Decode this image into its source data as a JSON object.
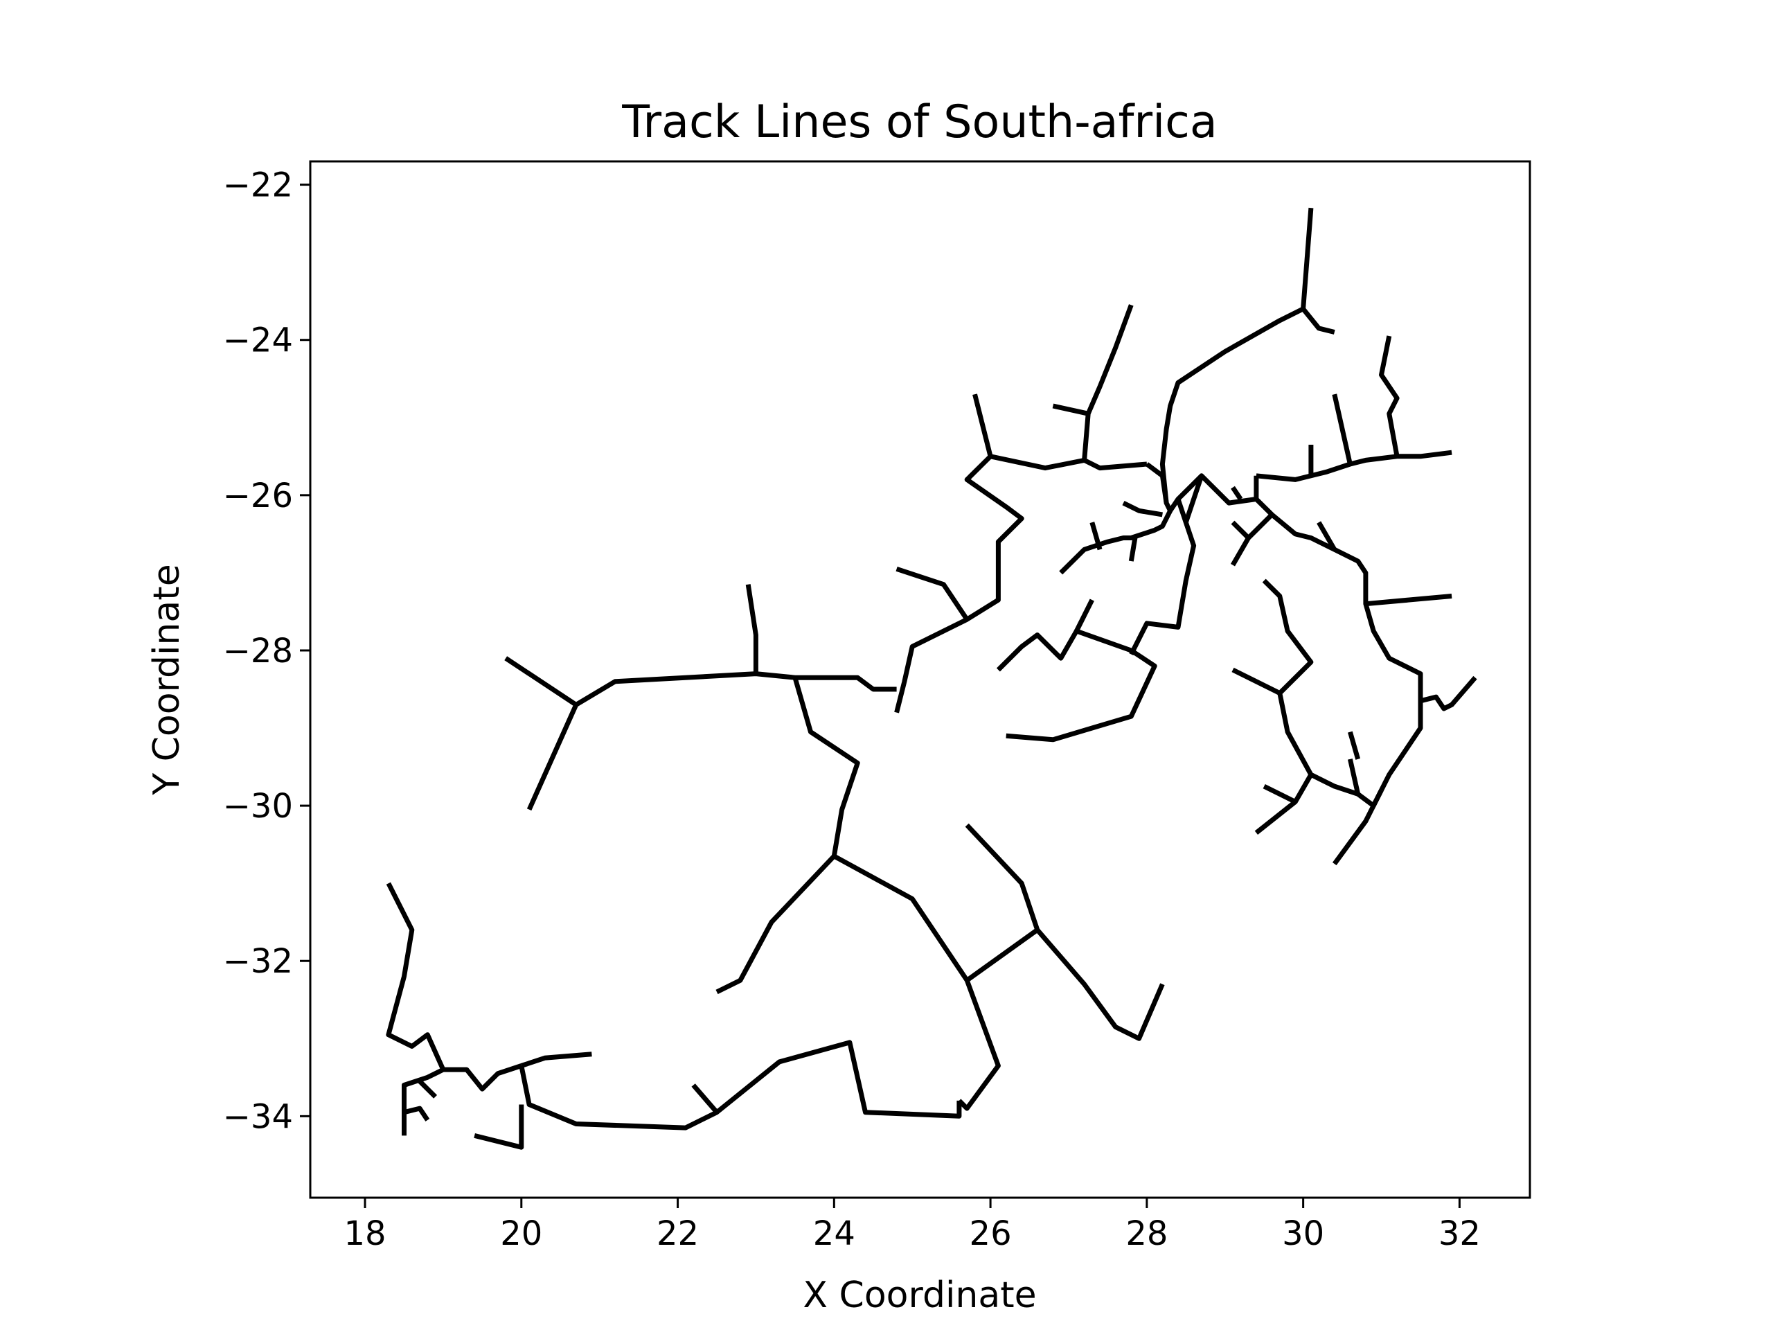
{
  "chart_data": {
    "type": "line",
    "title": "Track Lines of South-africa",
    "xlabel": "X Coordinate",
    "ylabel": "Y Coordinate",
    "xlim": [
      17.3,
      32.9
    ],
    "ylim": [
      -35.05,
      -21.7
    ],
    "xticks": [
      18,
      20,
      22,
      24,
      26,
      28,
      30,
      32
    ],
    "xtick_labels": [
      "18",
      "20",
      "22",
      "24",
      "26",
      "28",
      "30",
      "32"
    ],
    "yticks": [
      -22,
      -24,
      -26,
      -28,
      -30,
      -32,
      -34
    ],
    "ytick_labels": [
      "−22",
      "−24",
      "−26",
      "−28",
      "−30",
      "−32",
      "−34"
    ],
    "grid": false,
    "legend": "none",
    "line_color": "#000000",
    "series": [
      {
        "x": [
          20.1,
          20.7,
          21.2,
          23.0,
          23.5,
          24.3,
          24.5,
          24.8
        ],
        "y": [
          -30.05,
          -28.7,
          -28.4,
          -28.3,
          -28.35,
          -28.35,
          -28.5,
          -28.5
        ]
      },
      {
        "x": [
          19.8,
          20.7
        ],
        "y": [
          -28.1,
          -28.7
        ]
      },
      {
        "x": [
          22.9,
          23.0,
          23.0
        ],
        "y": [
          -27.15,
          -27.8,
          -28.3
        ]
      },
      {
        "x": [
          23.5,
          23.7,
          24.3,
          24.1,
          24.0,
          23.2,
          22.8,
          22.5
        ],
        "y": [
          -28.35,
          -29.05,
          -29.45,
          -30.05,
          -30.65,
          -31.5,
          -32.25,
          -32.4
        ]
      },
      {
        "x": [
          24.0,
          25.0,
          25.2,
          25.7,
          26.1,
          25.7,
          25.6
        ],
        "y": [
          -30.65,
          -31.2,
          -31.5,
          -32.25,
          -33.35,
          -33.9,
          -33.8
        ]
      },
      {
        "x": [
          25.7,
          26.6,
          26.4,
          25.7
        ],
        "y": [
          -32.25,
          -31.6,
          -31.0,
          -30.25
        ]
      },
      {
        "x": [
          26.6,
          27.2,
          27.6,
          27.9,
          28.2
        ],
        "y": [
          -31.6,
          -32.3,
          -32.85,
          -33.0,
          -32.3
        ]
      },
      {
        "x": [
          25.6,
          25.6,
          24.4,
          24.2,
          23.3,
          22.5,
          22.1,
          20.7,
          20.1,
          20.0
        ],
        "y": [
          -33.8,
          -34.0,
          -33.95,
          -33.05,
          -33.3,
          -33.95,
          -34.15,
          -34.1,
          -33.85,
          -33.35
        ]
      },
      {
        "x": [
          22.5,
          22.2
        ],
        "y": [
          -33.95,
          -33.6
        ]
      },
      {
        "x": [
          20.0,
          20.0,
          19.4
        ],
        "y": [
          -33.85,
          -34.4,
          -34.25
        ]
      },
      {
        "x": [
          20.0,
          20.3,
          20.9
        ],
        "y": [
          -33.35,
          -33.25,
          -33.2
        ]
      },
      {
        "x": [
          20.0,
          19.7,
          19.5,
          19.3,
          19.0,
          18.8,
          18.5,
          18.5
        ],
        "y": [
          -33.35,
          -33.45,
          -33.65,
          -33.4,
          -33.4,
          -33.5,
          -33.6,
          -34.25
        ]
      },
      {
        "x": [
          19.0,
          18.8,
          18.6,
          18.3,
          18.5,
          18.6,
          18.3
        ],
        "y": [
          -33.4,
          -32.95,
          -33.1,
          -32.95,
          -32.2,
          -31.6,
          -31.0
        ]
      },
      {
        "x": [
          18.5,
          18.7,
          18.8
        ],
        "y": [
          -33.95,
          -33.9,
          -34.05
        ]
      },
      {
        "x": [
          18.7,
          18.9
        ],
        "y": [
          -33.55,
          -33.75
        ]
      },
      {
        "x": [
          24.8,
          24.9,
          25.0,
          25.7,
          26.1,
          26.1,
          26.4,
          26.2,
          25.7,
          26.0,
          26.7,
          27.2,
          27.4,
          28.0
        ],
        "y": [
          -28.8,
          -28.4,
          -27.95,
          -27.6,
          -27.35,
          -26.6,
          -26.3,
          -26.15,
          -25.8,
          -25.5,
          -25.65,
          -25.55,
          -25.65,
          -25.6
        ]
      },
      {
        "x": [
          25.7,
          25.4,
          24.8
        ],
        "y": [
          -27.6,
          -27.15,
          -26.95
        ]
      },
      {
        "x": [
          26.0,
          25.8
        ],
        "y": [
          -25.5,
          -24.7
        ]
      },
      {
        "x": [
          27.2,
          27.25,
          27.4,
          27.6,
          27.8
        ],
        "y": [
          -25.55,
          -24.95,
          -24.6,
          -24.1,
          -23.55
        ]
      },
      {
        "x": [
          27.25,
          26.8
        ],
        "y": [
          -24.95,
          -24.85
        ]
      },
      {
        "x": [
          28.0,
          28.2,
          28.25,
          28.3,
          28.4,
          28.7,
          29.05,
          29.4,
          29.4
        ],
        "y": [
          -25.6,
          -25.75,
          -26.1,
          -26.2,
          -26.05,
          -25.75,
          -26.1,
          -26.05,
          -25.75
        ]
      },
      {
        "x": [
          28.25,
          28.2,
          28.25,
          28.3,
          28.4,
          29.0,
          29.7,
          30.0,
          30.2,
          30.4
        ],
        "y": [
          -26.1,
          -25.6,
          -25.15,
          -24.85,
          -24.55,
          -24.15,
          -23.75,
          -23.6,
          -23.85,
          -23.9
        ]
      },
      {
        "x": [
          30.0,
          30.1
        ],
        "y": [
          -23.6,
          -22.3
        ]
      },
      {
        "x": [
          29.4,
          29.9,
          30.3,
          30.6,
          30.8,
          31.2,
          31.5,
          31.9
        ],
        "y": [
          -25.75,
          -25.8,
          -25.7,
          -25.6,
          -25.55,
          -25.5,
          -25.5,
          -25.45
        ]
      },
      {
        "x": [
          30.1,
          30.1
        ],
        "y": [
          -25.75,
          -25.35
        ]
      },
      {
        "x": [
          30.6,
          30.4
        ],
        "y": [
          -25.6,
          -24.7
        ]
      },
      {
        "x": [
          31.2,
          31.1,
          31.2,
          31.0,
          31.1
        ],
        "y": [
          -25.5,
          -24.95,
          -24.75,
          -24.45,
          -23.95
        ]
      },
      {
        "x": [
          28.2,
          27.9,
          27.7
        ],
        "y": [
          -26.25,
          -26.2,
          -26.1
        ]
      },
      {
        "x": [
          28.3,
          28.2,
          28.1,
          27.8,
          27.7,
          27.5,
          27.2,
          26.9
        ],
        "y": [
          -26.2,
          -26.4,
          -26.45,
          -26.55,
          -26.55,
          -26.6,
          -26.7,
          -27.0
        ]
      },
      {
        "x": [
          27.85,
          27.8
        ],
        "y": [
          -26.55,
          -26.85
        ]
      },
      {
        "x": [
          27.4,
          27.3
        ],
        "y": [
          -26.7,
          -26.35
        ]
      },
      {
        "x": [
          28.4,
          28.5,
          28.6,
          28.5,
          28.4,
          28.0,
          27.8
        ],
        "y": [
          -26.05,
          -26.35,
          -26.65,
          -27.1,
          -27.7,
          -27.65,
          -28.05
        ]
      },
      {
        "x": [
          28.7,
          28.5
        ],
        "y": [
          -25.75,
          -26.35
        ]
      },
      {
        "x": [
          26.1,
          26.4,
          26.6,
          26.9,
          27.1,
          27.8,
          28.1,
          27.8,
          27.3,
          26.8,
          26.2
        ],
        "y": [
          -28.25,
          -27.95,
          -27.8,
          -28.1,
          -27.75,
          -28.0,
          -28.2,
          -28.85,
          -29.0,
          -29.15,
          -29.1
        ]
      },
      {
        "x": [
          27.1,
          27.3
        ],
        "y": [
          -27.75,
          -27.35
        ]
      },
      {
        "x": [
          29.4,
          29.6,
          29.9,
          30.1,
          30.4,
          30.7,
          30.8,
          30.8,
          30.9,
          31.1,
          31.5,
          31.5,
          31.3,
          31.1,
          31.0
        ],
        "y": [
          -26.05,
          -26.25,
          -26.5,
          -26.55,
          -26.7,
          -26.85,
          -27.0,
          -27.4,
          -27.75,
          -28.1,
          -28.3,
          -29.0,
          -29.3,
          -29.6,
          -29.8
        ]
      },
      {
        "x": [
          30.8,
          31.9
        ],
        "y": [
          -27.4,
          -27.3
        ]
      },
      {
        "x": [
          31.5,
          31.7,
          31.8,
          31.9,
          32.2
        ],
        "y": [
          -28.65,
          -28.6,
          -28.75,
          -28.7,
          -28.35
        ]
      },
      {
        "x": [
          30.4,
          30.2
        ],
        "y": [
          -26.7,
          -26.35
        ]
      },
      {
        "x": [
          29.6,
          29.3,
          29.1
        ],
        "y": [
          -26.25,
          -26.55,
          -26.9
        ]
      },
      {
        "x": [
          29.3,
          29.1
        ],
        "y": [
          -26.55,
          -26.35
        ]
      },
      {
        "x": [
          29.2,
          29.1
        ],
        "y": [
          -26.05,
          -25.9
        ]
      },
      {
        "x": [
          29.5,
          29.7,
          29.8,
          30.1,
          29.7,
          29.8,
          30.1,
          30.4,
          30.7,
          30.9,
          31.0
        ],
        "y": [
          -27.1,
          -27.3,
          -27.75,
          -28.15,
          -28.55,
          -29.05,
          -29.6,
          -29.75,
          -29.85,
          -30.0,
          -29.8
        ]
      },
      {
        "x": [
          29.7,
          29.1
        ],
        "y": [
          -28.55,
          -28.25
        ]
      },
      {
        "x": [
          30.1,
          29.9,
          29.4
        ],
        "y": [
          -29.6,
          -29.95,
          -30.35
        ]
      },
      {
        "x": [
          29.9,
          29.5
        ],
        "y": [
          -29.95,
          -29.75
        ]
      },
      {
        "x": [
          30.7,
          30.6
        ],
        "y": [
          -29.85,
          -29.4
        ]
      },
      {
        "x": [
          30.7,
          30.6
        ],
        "y": [
          -29.4,
          -29.05
        ]
      },
      {
        "x": [
          31.0,
          30.8,
          30.4
        ],
        "y": [
          -29.8,
          -30.2,
          -30.75
        ]
      }
    ]
  }
}
